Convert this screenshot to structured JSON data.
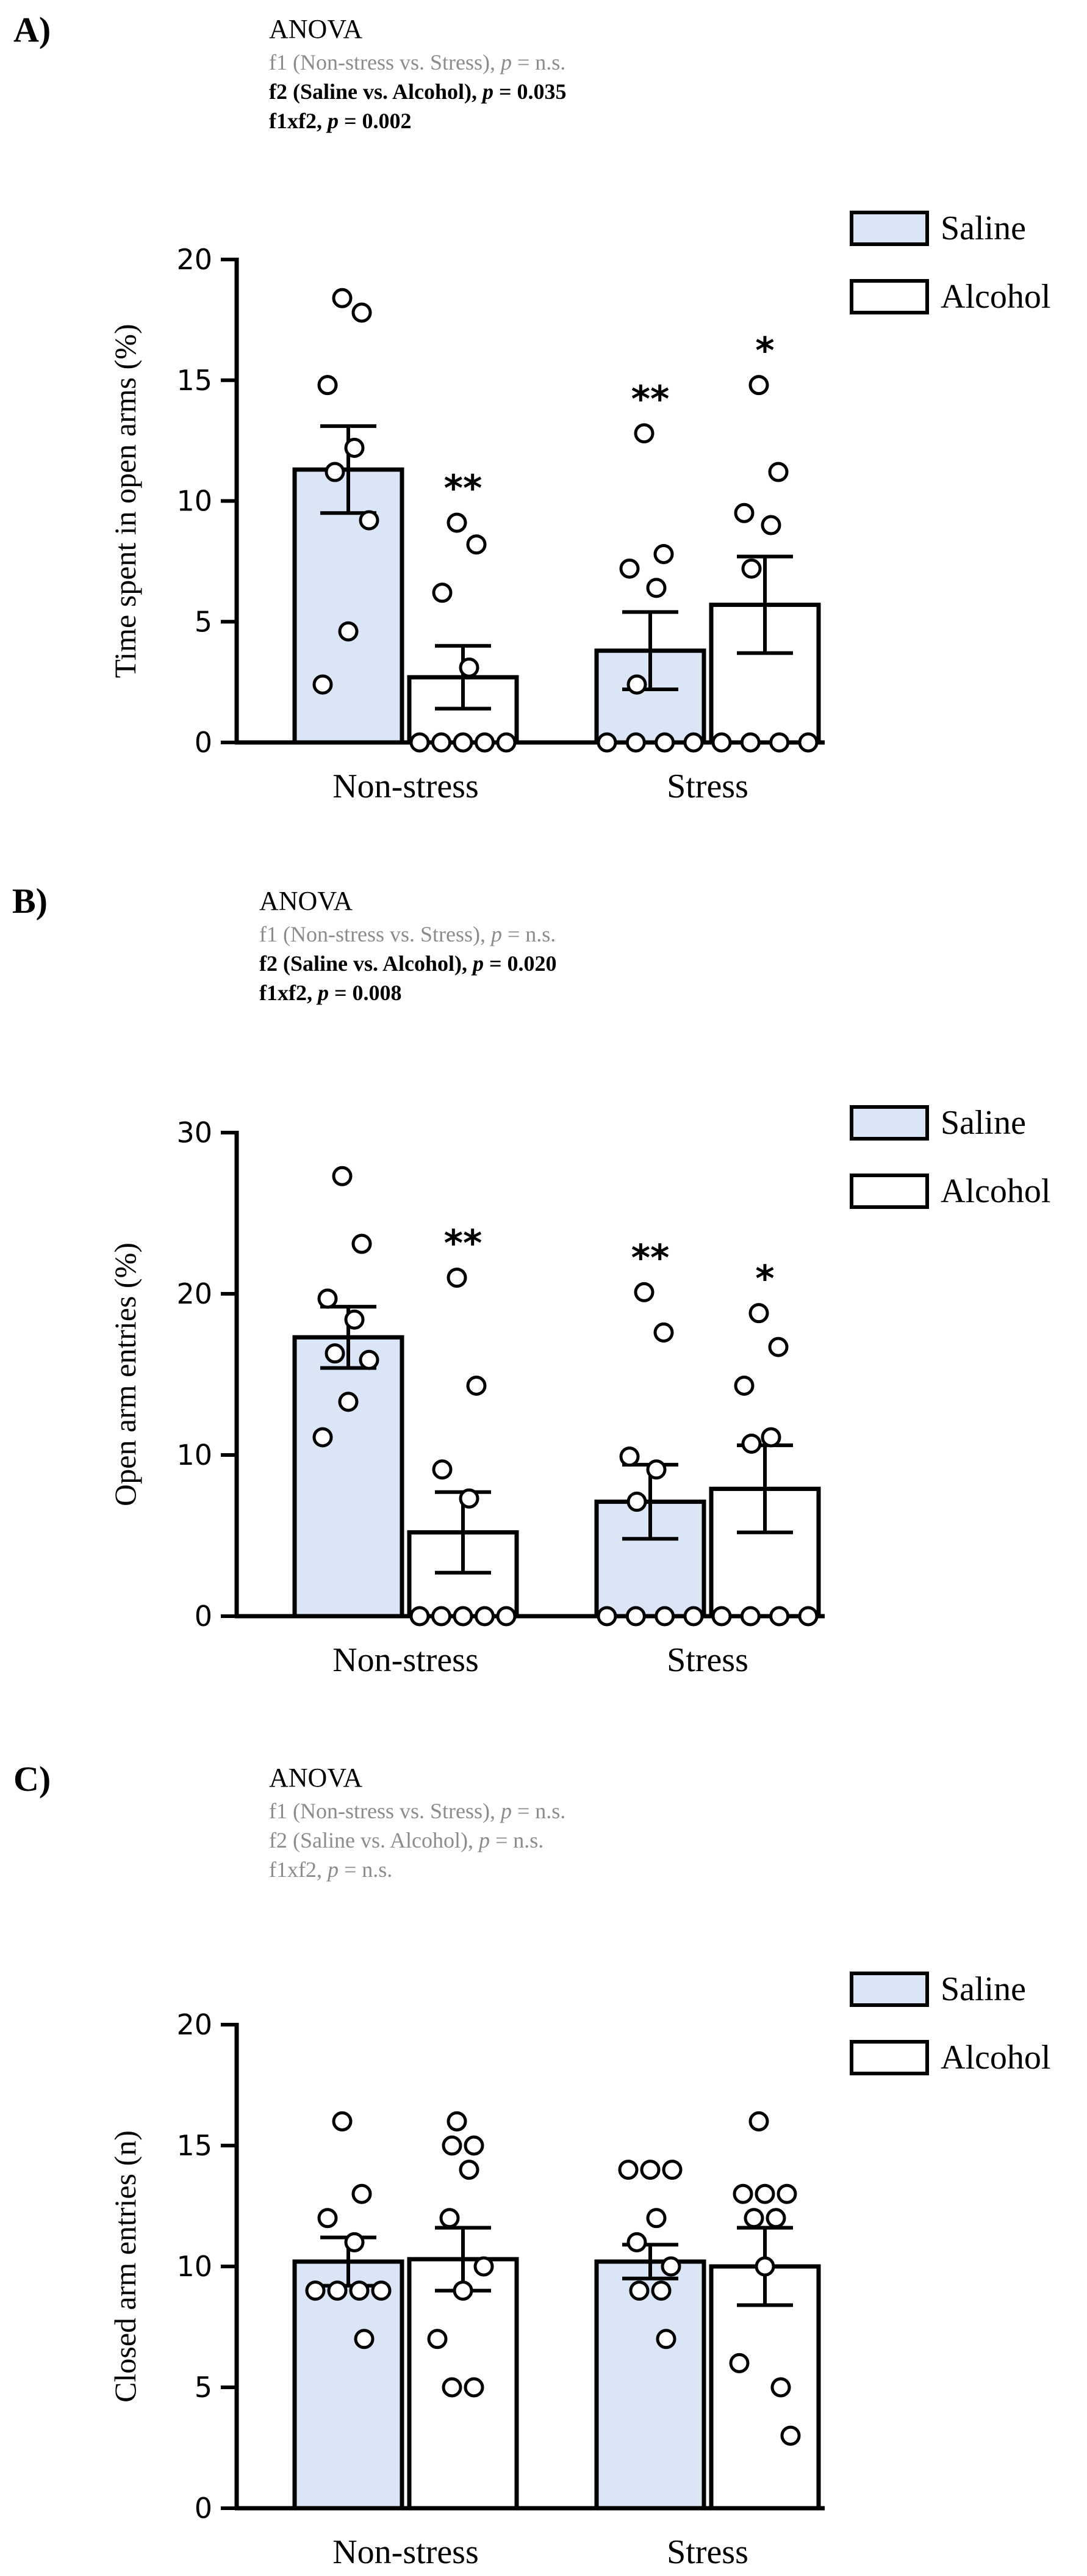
{
  "colors": {
    "saline_fill": "#dae6f6",
    "alcohol_fill": "#ffffff",
    "stroke": "#000000",
    "ns_text": "#8c8c8c",
    "sig_text": "#000000"
  },
  "legend": {
    "saline": "Saline",
    "alcohol": "Alcohol"
  },
  "panels": [
    {
      "label": "A)",
      "anova": {
        "title": "ANOVA",
        "lines": [
          {
            "pre": "f1 (Non-stress vs. Stress), ",
            "p": "p",
            "post": " = n.s.",
            "bold": false,
            "gray": true
          },
          {
            "pre": "f2 (Saline vs. Alcohol), ",
            "p": "p",
            "post": " = 0.035",
            "bold": true,
            "gray": false
          },
          {
            "pre": "f1xf2, ",
            "p": "p",
            "post": " = 0.002",
            "bold": true,
            "gray": false
          }
        ]
      }
    },
    {
      "label": "B)",
      "anova": {
        "title": "ANOVA",
        "lines": [
          {
            "pre": "f1 (Non-stress vs. Stress), ",
            "p": "p",
            "post": " = n.s.",
            "bold": false,
            "gray": true
          },
          {
            "pre": "f2 (Saline vs. Alcohol), ",
            "p": "p",
            "post": " = 0.020",
            "bold": true,
            "gray": false
          },
          {
            "pre": "f1xf2, ",
            "p": "p",
            "post": " = 0.008",
            "bold": true,
            "gray": false
          }
        ]
      }
    },
    {
      "label": "C)",
      "anova": {
        "title": "ANOVA",
        "lines": [
          {
            "pre": "f1 (Non-stress vs. Stress), ",
            "p": "p",
            "post": " = n.s.",
            "bold": false,
            "gray": true
          },
          {
            "pre": "f2 (Saline vs. Alcohol), ",
            "p": "p",
            "post": " = n.s.",
            "bold": false,
            "gray": true
          },
          {
            "pre": "f1xf2, ",
            "p": "p",
            "post": " = n.s.",
            "bold": false,
            "gray": true
          }
        ]
      }
    }
  ],
  "chart_data": [
    {
      "type": "bar",
      "title": "A)",
      "xlabel": "",
      "ylabel": "Time spent in open arms (%)",
      "ylim": [
        0,
        20
      ],
      "yticks": [
        0,
        5,
        10,
        15,
        20
      ],
      "categories": [
        "Non-stress",
        "Stress"
      ],
      "legend_position": "top-right",
      "series": [
        {
          "name": "Saline",
          "values": [
            11.3,
            3.8
          ],
          "sem": [
            1.8,
            1.6
          ],
          "significance": [
            "",
            "**"
          ],
          "points": [
            [
              18.4,
              17.8,
              14.8,
              12.2,
              11.2,
              9.2,
              4.6,
              2.4
            ],
            [
              12.8,
              7.8,
              7.2,
              6.4,
              2.4,
              0,
              0,
              0,
              0
            ]
          ]
        },
        {
          "name": "Alcohol",
          "values": [
            2.7,
            5.7
          ],
          "sem": [
            1.3,
            2.0
          ],
          "significance": [
            "**",
            "*"
          ],
          "points": [
            [
              9.1,
              8.2,
              6.2,
              3.1,
              0,
              0,
              0,
              0,
              0
            ],
            [
              14.8,
              11.2,
              9.5,
              9.0,
              7.2,
              0,
              0,
              0,
              0
            ]
          ]
        }
      ]
    },
    {
      "type": "bar",
      "title": "B)",
      "xlabel": "",
      "ylabel": "Open arm entries (%)",
      "ylim": [
        0,
        30
      ],
      "yticks": [
        0,
        10,
        20,
        30
      ],
      "categories": [
        "Non-stress",
        "Stress"
      ],
      "legend_position": "top-right",
      "series": [
        {
          "name": "Saline",
          "values": [
            17.3,
            7.1
          ],
          "sem": [
            1.9,
            2.3
          ],
          "significance": [
            "",
            "**"
          ],
          "points": [
            [
              27.3,
              23.1,
              19.7,
              18.4,
              16.3,
              15.9,
              13.3,
              11.1
            ],
            [
              20.1,
              17.6,
              9.9,
              9.1,
              7.1,
              0,
              0,
              0,
              0
            ]
          ]
        },
        {
          "name": "Alcohol",
          "values": [
            5.2,
            7.9
          ],
          "sem": [
            2.5,
            2.7
          ],
          "significance": [
            "**",
            "*"
          ],
          "points": [
            [
              21.0,
              14.3,
              9.1,
              7.3,
              0,
              0,
              0,
              0,
              0
            ],
            [
              18.8,
              16.7,
              14.3,
              11.1,
              10.7,
              0,
              0,
              0,
              0
            ]
          ]
        }
      ]
    },
    {
      "type": "bar",
      "title": "C)",
      "xlabel": "",
      "ylabel": "Closed arm entries (n)",
      "ylim": [
        0,
        20
      ],
      "yticks": [
        0,
        5,
        10,
        15,
        20
      ],
      "categories": [
        "Non-stress",
        "Stress"
      ],
      "legend_position": "top-right",
      "series": [
        {
          "name": "Saline",
          "values": [
            10.2,
            10.2
          ],
          "sem": [
            1.0,
            0.7
          ],
          "significance": [
            "",
            ""
          ],
          "points": [
            [
              16,
              13,
              12,
              11,
              9,
              9,
              9,
              9,
              7
            ],
            [
              14,
              14,
              14,
              12,
              11,
              10,
              9,
              9,
              7
            ]
          ]
        },
        {
          "name": "Alcohol",
          "values": [
            10.3,
            10.0
          ],
          "sem": [
            1.3,
            1.6
          ],
          "significance": [
            "",
            ""
          ],
          "points": [
            [
              16,
              15,
              15,
              14,
              12,
              10,
              9,
              7,
              5,
              5
            ],
            [
              16,
              13,
              13,
              13,
              12,
              12,
              10,
              6,
              5,
              3
            ]
          ]
        }
      ]
    }
  ]
}
